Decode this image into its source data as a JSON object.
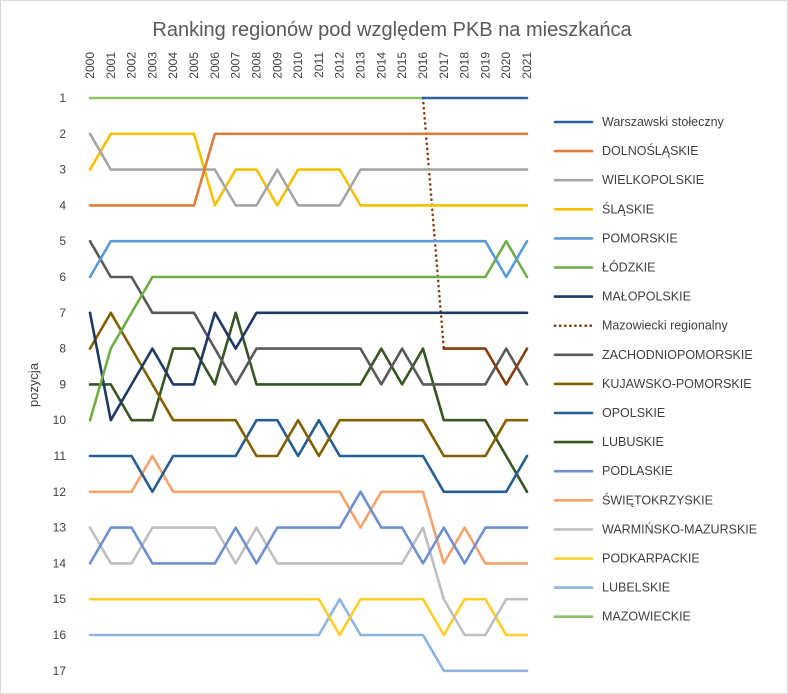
{
  "chart_data": {
    "type": "line",
    "title": "Ranking regionów pod względem PKB na mieszkańca",
    "ylabel": "pozycja",
    "xlabel": "",
    "y_reversed": true,
    "ylim": [
      1,
      17
    ],
    "x_axis_position": "top",
    "grid": false,
    "legend_position": "right",
    "x": [
      "2000",
      "2001",
      "2002",
      "2003",
      "2004",
      "2005",
      "2006",
      "2007",
      "2008",
      "2009",
      "2010",
      "2011",
      "2012",
      "2013",
      "2014",
      "2015",
      "2016",
      "2017",
      "2018",
      "2019",
      "2020",
      "2021"
    ],
    "y_ticks": [
      1,
      2,
      3,
      4,
      5,
      6,
      7,
      8,
      9,
      10,
      11,
      12,
      13,
      14,
      15,
      16,
      17
    ],
    "series": [
      {
        "name": "Warszawski stołeczny",
        "color": "#2e5f9e",
        "values": [
          null,
          null,
          null,
          null,
          null,
          null,
          null,
          null,
          null,
          null,
          null,
          null,
          null,
          null,
          null,
          null,
          1,
          1,
          1,
          1,
          1,
          1
        ]
      },
      {
        "name": "DOLNOŚLĄSKIE",
        "color": "#e07b39",
        "values": [
          4,
          4,
          4,
          4,
          4,
          4,
          2,
          2,
          2,
          2,
          2,
          2,
          2,
          2,
          2,
          2,
          2,
          2,
          2,
          2,
          2,
          2
        ]
      },
      {
        "name": "WIELKOPOLSKIE",
        "color": "#a5a5a5",
        "values": [
          2,
          3,
          3,
          3,
          3,
          3,
          3,
          4,
          4,
          3,
          4,
          4,
          4,
          3,
          3,
          3,
          3,
          3,
          3,
          3,
          3,
          3
        ]
      },
      {
        "name": "ŚLĄSKIE",
        "color": "#f5c000",
        "values": [
          3,
          2,
          2,
          2,
          2,
          2,
          4,
          3,
          3,
          4,
          3,
          3,
          3,
          4,
          4,
          4,
          4,
          4,
          4,
          4,
          4,
          4
        ]
      },
      {
        "name": "POMORSKIE",
        "color": "#5b9bd5",
        "values": [
          6,
          5,
          5,
          5,
          5,
          5,
          5,
          5,
          5,
          5,
          5,
          5,
          5,
          5,
          5,
          5,
          5,
          5,
          5,
          5,
          6,
          5
        ]
      },
      {
        "name": "ŁÓDZKIE",
        "color": "#70ad47",
        "values": [
          10,
          8,
          7,
          6,
          6,
          6,
          6,
          6,
          6,
          6,
          6,
          6,
          6,
          6,
          6,
          6,
          6,
          6,
          6,
          6,
          5,
          6
        ]
      },
      {
        "name": "MAŁOPOLSKIE",
        "color": "#203864",
        "values": [
          7,
          10,
          9,
          8,
          9,
          9,
          7,
          8,
          7,
          7,
          7,
          7,
          7,
          7,
          7,
          7,
          7,
          7,
          7,
          7,
          7,
          7
        ]
      },
      {
        "name": "Mazowiecki regionalny",
        "color": "#843c0c",
        "dashed": true,
        "values": [
          null,
          null,
          null,
          null,
          null,
          null,
          null,
          null,
          null,
          null,
          null,
          null,
          null,
          null,
          null,
          null,
          1,
          8,
          null,
          null,
          null,
          null
        ]
      },
      {
        "name": "Mazowiecki regionalny (solid)",
        "legend": false,
        "color": "#843c0c",
        "values": [
          null,
          null,
          null,
          null,
          null,
          null,
          null,
          null,
          null,
          null,
          null,
          null,
          null,
          null,
          null,
          null,
          null,
          8,
          8,
          8,
          9,
          8
        ]
      },
      {
        "name": "ZACHODNIOPOMORSKIE",
        "color": "#595959",
        "values": [
          5,
          6,
          6,
          7,
          7,
          7,
          8,
          9,
          8,
          8,
          8,
          8,
          8,
          8,
          9,
          8,
          9,
          9,
          9,
          9,
          8,
          9
        ]
      },
      {
        "name": "KUJAWSKO-POMORSKIE",
        "color": "#806000",
        "values": [
          8,
          7,
          8,
          9,
          10,
          10,
          10,
          10,
          11,
          11,
          10,
          11,
          10,
          10,
          10,
          10,
          10,
          11,
          11,
          11,
          10,
          10
        ]
      },
      {
        "name": "OPOLSKIE",
        "color": "#255e91",
        "values": [
          11,
          11,
          11,
          12,
          11,
          11,
          11,
          11,
          10,
          10,
          11,
          10,
          11,
          11,
          11,
          11,
          11,
          12,
          12,
          12,
          12,
          11
        ]
      },
      {
        "name": "LUBUSKIE",
        "color": "#375623",
        "values": [
          9,
          9,
          10,
          10,
          8,
          8,
          9,
          7,
          9,
          9,
          9,
          9,
          9,
          9,
          8,
          9,
          8,
          10,
          10,
          10,
          11,
          12
        ]
      },
      {
        "name": "PODLASKIE",
        "color": "#6f8fcf",
        "values": [
          14,
          13,
          13,
          14,
          14,
          14,
          14,
          13,
          14,
          13,
          13,
          13,
          13,
          12,
          13,
          13,
          14,
          13,
          14,
          13,
          13,
          13
        ]
      },
      {
        "name": "ŚWIĘTOKRZYSKIE",
        "color": "#f4a26e",
        "values": [
          12,
          12,
          12,
          11,
          12,
          12,
          12,
          12,
          12,
          12,
          12,
          12,
          12,
          13,
          12,
          12,
          12,
          14,
          13,
          14,
          14,
          14
        ]
      },
      {
        "name": "WARMIŃSKO-MAZURSKIE",
        "color": "#bfbfbf",
        "values": [
          13,
          14,
          14,
          13,
          13,
          13,
          13,
          14,
          13,
          14,
          14,
          14,
          14,
          14,
          14,
          14,
          13,
          15,
          16,
          16,
          15,
          15
        ]
      },
      {
        "name": "PODKARPACKIE",
        "color": "#ffcd28",
        "values": [
          15,
          15,
          15,
          15,
          15,
          15,
          15,
          15,
          15,
          15,
          15,
          15,
          16,
          15,
          15,
          15,
          15,
          16,
          15,
          15,
          16,
          16
        ]
      },
      {
        "name": "LUBELSKIE",
        "color": "#8fb4e0",
        "values": [
          16,
          16,
          16,
          16,
          16,
          16,
          16,
          16,
          16,
          16,
          16,
          16,
          15,
          16,
          16,
          16,
          16,
          17,
          17,
          17,
          17,
          17
        ]
      },
      {
        "name": "MAZOWIECKIE",
        "color": "#8cc068",
        "values": [
          1,
          1,
          1,
          1,
          1,
          1,
          1,
          1,
          1,
          1,
          1,
          1,
          1,
          1,
          1,
          1,
          1,
          null,
          null,
          null,
          null,
          null
        ]
      }
    ]
  }
}
